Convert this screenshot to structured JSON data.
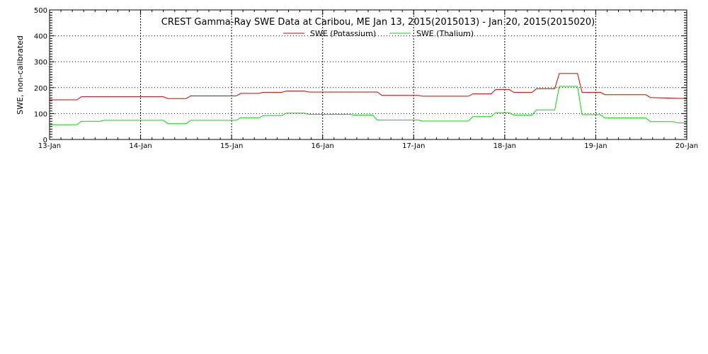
{
  "chart_data": {
    "type": "line",
    "title": "CREST Gamma-Ray SWE Data at Caribou, ME   Jan 13, 2015(2015013) - Jan 20, 2015(2015020)",
    "xlabel": "",
    "ylabel": "SWE, non-calibrated",
    "ylim": [
      0,
      500
    ],
    "xlim": [
      13,
      20
    ],
    "y_ticks": [
      0,
      100,
      200,
      300,
      400,
      500
    ],
    "x_ticks": [
      13,
      14,
      15,
      16,
      17,
      18,
      19,
      20
    ],
    "x_tick_labels": [
      "13-Jan",
      "14-Jan",
      "15-Jan",
      "16-Jan",
      "17-Jan",
      "18-Jan",
      "19-Jan",
      "20-Jan"
    ],
    "grid": true,
    "legend_position": "top-center",
    "series": [
      {
        "name": "SWE (Potassium)",
        "color": "#cc0000",
        "x": [
          13.0,
          13.3,
          13.35,
          14.25,
          14.3,
          14.5,
          14.55,
          15.05,
          15.1,
          15.3,
          15.35,
          15.55,
          15.6,
          15.8,
          15.85,
          16.6,
          16.65,
          17.05,
          17.1,
          17.6,
          17.65,
          17.85,
          17.9,
          18.05,
          18.1,
          18.3,
          18.35,
          18.55,
          18.6,
          18.8,
          18.85,
          19.05,
          19.1,
          19.55,
          19.6,
          20.0
        ],
        "y": [
          153,
          153,
          165,
          165,
          158,
          158,
          168,
          168,
          178,
          178,
          182,
          182,
          187,
          187,
          183,
          183,
          170,
          170,
          167,
          167,
          176,
          176,
          193,
          193,
          182,
          182,
          196,
          196,
          255,
          255,
          182,
          182,
          173,
          173,
          162,
          158
        ]
      },
      {
        "name": "SWE (Thalium)",
        "color": "#00dd00",
        "x": [
          13.0,
          13.3,
          13.35,
          13.55,
          13.6,
          14.25,
          14.3,
          14.5,
          14.55,
          15.05,
          15.1,
          15.3,
          15.35,
          15.55,
          15.6,
          15.8,
          15.85,
          16.3,
          16.35,
          16.55,
          16.6,
          17.05,
          17.1,
          17.6,
          17.65,
          17.85,
          17.9,
          18.05,
          18.1,
          18.3,
          18.35,
          18.55,
          18.6,
          18.8,
          18.85,
          19.05,
          19.1,
          19.55,
          19.6,
          19.85,
          19.9,
          20.0
        ],
        "y": [
          57,
          57,
          70,
          70,
          74,
          74,
          61,
          61,
          74,
          74,
          84,
          84,
          92,
          92,
          102,
          102,
          97,
          97,
          94,
          94,
          75,
          75,
          71,
          71,
          88,
          88,
          103,
          103,
          94,
          94,
          114,
          114,
          205,
          205,
          96,
          96,
          83,
          83,
          69,
          69,
          64,
          64
        ]
      }
    ]
  }
}
